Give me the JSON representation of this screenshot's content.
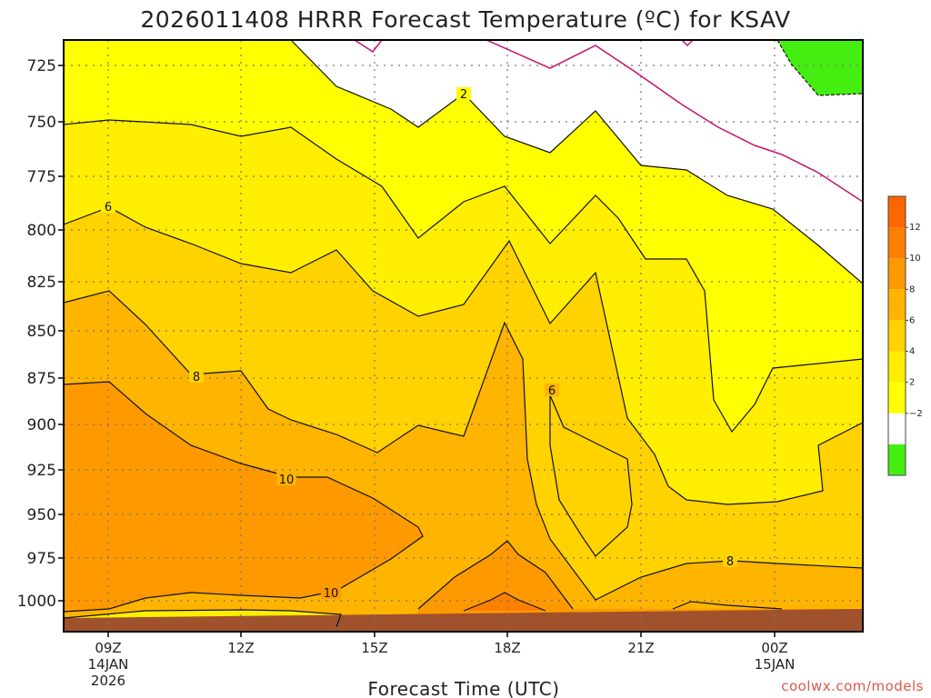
{
  "chart_data": {
    "type": "heatmap",
    "title": "2026011408 HRRR Forecast Temperature (ºC) for KSAV",
    "xlabel": "Forecast Time (UTC)",
    "credit": "coolwx.com/models",
    "y_axis": {
      "ticks": [
        "725",
        "750",
        "775",
        "800",
        "825",
        "850",
        "875",
        "900",
        "925",
        "950",
        "975",
        "1000"
      ]
    },
    "x_axis": {
      "ticks": [
        {
          "label": "09Z",
          "date": "14JAN",
          "year": "2026"
        },
        {
          "label": "12Z",
          "date": "",
          "year": ""
        },
        {
          "label": "15Z",
          "date": "",
          "year": ""
        },
        {
          "label": "18Z",
          "date": "",
          "year": ""
        },
        {
          "label": "21Z",
          "date": "",
          "year": ""
        },
        {
          "label": "00Z",
          "date": "15JAN",
          "year": ""
        }
      ]
    },
    "colorbar": {
      "labels": [
        "12",
        "10",
        "8",
        "6",
        "4",
        "2",
        "−2"
      ],
      "bands": [
        {
          "range": "<-2",
          "color": "#44ee11"
        },
        {
          "range": "-2 to 2",
          "color": "#ffffff"
        },
        {
          "range": "2 to 4",
          "color": "#ffff00"
        },
        {
          "range": "4 to 6",
          "color": "#ffee00"
        },
        {
          "range": "6 to 8",
          "color": "#ffd200"
        },
        {
          "range": "8 to 10",
          "color": "#ffb400"
        },
        {
          "range": "10 to 12",
          "color": "#ff9900"
        },
        {
          "range": "12 to 14",
          "color": "#ff7f00"
        },
        {
          "range": ">14",
          "color": "#ff6600"
        }
      ]
    },
    "contour_labels": [
      "2",
      "6",
      "8",
      "10",
      "10",
      "6",
      "8"
    ],
    "ground_color": "#a0522d",
    "grid": true
  }
}
